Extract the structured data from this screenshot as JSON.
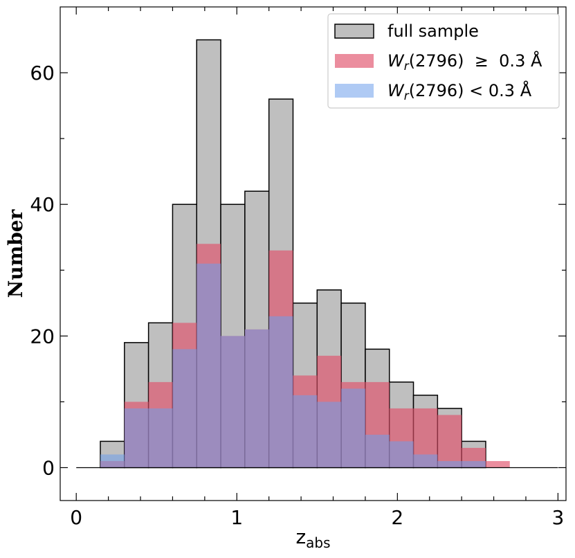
{
  "chart_data": {
    "type": "bar",
    "title": "",
    "xlabel": "z",
    "xlabel_sub": "abs",
    "ylabel": "Number",
    "xlim": [
      -0.1,
      3.05
    ],
    "ylim": [
      -5,
      70
    ],
    "x_ticks": [
      0,
      1,
      2,
      3
    ],
    "y_ticks": [
      0,
      20,
      40,
      60
    ],
    "x_tick_labels": [
      "0",
      "1",
      "2",
      "3"
    ],
    "y_tick_labels": [
      "0",
      "20",
      "40",
      "60"
    ],
    "x_minor_step": 0.2,
    "y_minor_step": 10,
    "grid": false,
    "legend_position": "top-right",
    "baseline_x_range": [
      0,
      3
    ],
    "bin_edges": [
      0.15,
      0.3,
      0.45,
      0.6,
      0.75,
      0.9,
      1.05,
      1.2,
      1.35,
      1.5,
      1.65,
      1.8,
      1.95,
      2.1,
      2.25,
      2.4,
      2.55,
      2.7
    ],
    "series": [
      {
        "name": "full sample",
        "color": "#bfbfbf",
        "edge": "#000000",
        "values": [
          4,
          19,
          22,
          40,
          65,
          40,
          42,
          56,
          25,
          27,
          25,
          18,
          13,
          11,
          9,
          4,
          0
        ]
      },
      {
        "name_prefix": "W",
        "name_sub": "r",
        "name_suffix": "(2796)  ≥  0.3 Å",
        "color": "#e0506a",
        "values": [
          1,
          10,
          13,
          22,
          34,
          20,
          21,
          33,
          14,
          17,
          13,
          13,
          9,
          9,
          8,
          3,
          1
        ]
      },
      {
        "name_prefix": "W",
        "name_sub": "r",
        "name_suffix": "(2796) < 0.3 Å",
        "color": "#6d9eeb",
        "values": [
          2,
          9,
          9,
          18,
          31,
          20,
          21,
          23,
          11,
          10,
          12,
          5,
          4,
          2,
          1,
          1,
          0
        ]
      }
    ]
  }
}
